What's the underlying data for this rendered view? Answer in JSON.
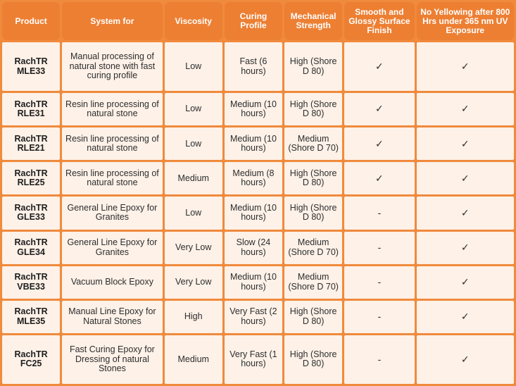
{
  "columns": [
    "Product",
    "System for",
    "Viscosity",
    "Curing Profile",
    "Mechanical Strength",
    "Smooth and Glossy Surface Finish",
    "No Yellowing after 800 Hrs under 365 nm UV Exposure"
  ],
  "rows": [
    {
      "product": "RachTR MLE33",
      "system": "Manual processing of natural stone with fast curing profile",
      "viscosity": "Low",
      "curing": "Fast (6 hours)",
      "strength": "High (Shore D 80)",
      "smooth": "✓",
      "no_yellowing": "✓"
    },
    {
      "product": "RachTR RLE31",
      "system": "Resin line processing of natural stone",
      "viscosity": "Low",
      "curing": "Medium (10 hours)",
      "strength": "High (Shore D 80)",
      "smooth": "✓",
      "no_yellowing": "✓"
    },
    {
      "product": "RachTR RLE21",
      "system": "Resin line processing of natural stone",
      "viscosity": "Low",
      "curing": "Medium (10 hours)",
      "strength": "Medium (Shore D 70)",
      "smooth": "✓",
      "no_yellowing": "✓"
    },
    {
      "product": "RachTR RLE25",
      "system": "Resin line processing of natural stone",
      "viscosity": "Medium",
      "curing": "Medium (8 hours)",
      "strength": "High (Shore D 80)",
      "smooth": "✓",
      "no_yellowing": "✓"
    },
    {
      "product": "RachTR GLE33",
      "system": "General Line Epoxy for Granites",
      "viscosity": "Low",
      "curing": "Medium (10 hours)",
      "strength": "High (Shore D 80)",
      "smooth": "-",
      "no_yellowing": "✓"
    },
    {
      "product": "RachTR GLE34",
      "system": "General Line Epoxy for Granites",
      "viscosity": "Very Low",
      "curing": "Slow (24 hours)",
      "strength": "Medium (Shore D 70)",
      "smooth": "-",
      "no_yellowing": "✓"
    },
    {
      "product": "RachTR VBE33",
      "system": "Vacuum Block Epoxy",
      "viscosity": "Very Low",
      "curing": "Medium (10 hours)",
      "strength": "Medium (Shore D 70)",
      "smooth": "-",
      "no_yellowing": "✓"
    },
    {
      "product": "RachTR MLE35",
      "system": "Manual Line Epoxy for Natural Stones",
      "viscosity": "High",
      "curing": "Very Fast (2 hours)",
      "strength": "High (Shore D 80)",
      "smooth": "-",
      "no_yellowing": "✓"
    },
    {
      "product": "RachTR FC25",
      "system": "Fast Curing Epoxy for Dressing of natural Stones",
      "viscosity": "Medium",
      "curing": "Very Fast (1 hours)",
      "strength": "High (Shore D 80)",
      "smooth": "-",
      "no_yellowing": "✓"
    }
  ],
  "colors": {
    "header_bg": "#ed7f33",
    "border": "#f08a3c",
    "cell_bg": "#fdf1e8",
    "header_text": "#ffffff",
    "cell_text": "#2d2d2d"
  }
}
